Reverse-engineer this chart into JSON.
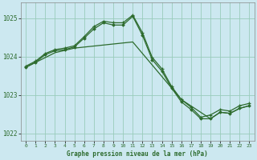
{
  "title": "Graphe pression niveau de la mer (hPa)",
  "bg_color": "#cce8f0",
  "grid_color": "#99ccbb",
  "line_color": "#2d6b2d",
  "xlim": [
    -0.5,
    23.5
  ],
  "ylim": [
    1021.8,
    1025.4
  ],
  "yticks": [
    1022,
    1023,
    1024,
    1025
  ],
  "xtick_labels": [
    "0",
    "1",
    "2",
    "3",
    "4",
    "5",
    "6",
    "7",
    "8",
    "9",
    "10",
    "11",
    "12",
    "13",
    "14",
    "15",
    "16",
    "17",
    "18",
    "19",
    "20",
    "21",
    "22",
    "23"
  ],
  "series_plus": {
    "x": [
      0,
      1,
      2,
      3,
      4,
      5,
      6,
      7,
      8,
      9,
      10,
      11,
      12,
      13,
      14,
      15,
      16,
      17,
      18,
      19,
      20,
      21,
      22,
      23
    ],
    "y": [
      1023.75,
      1023.88,
      1024.08,
      1024.18,
      1024.22,
      1024.28,
      1024.52,
      1024.78,
      1024.92,
      1024.88,
      1024.88,
      1025.08,
      1024.62,
      1023.98,
      1023.68,
      1023.22,
      1022.88,
      1022.68,
      1022.42,
      1022.48,
      1022.62,
      1022.58,
      1022.72,
      1022.78
    ]
  },
  "series_diamond": {
    "x": [
      0,
      1,
      2,
      3,
      4,
      5,
      6,
      7,
      8,
      9,
      10,
      11,
      12,
      13,
      14,
      15,
      16,
      17,
      18,
      19,
      20,
      21,
      22,
      23
    ],
    "y": [
      1023.72,
      1023.85,
      1024.05,
      1024.15,
      1024.18,
      1024.25,
      1024.48,
      1024.72,
      1024.88,
      1024.82,
      1024.82,
      1025.05,
      1024.55,
      1023.92,
      1023.62,
      1023.18,
      1022.82,
      1022.62,
      1022.38,
      1022.38,
      1022.55,
      1022.52,
      1022.65,
      1022.72
    ]
  },
  "series_line": {
    "x": [
      0,
      3,
      5,
      11,
      16,
      19,
      20,
      21,
      22,
      23
    ],
    "y": [
      1023.72,
      1024.1,
      1024.22,
      1024.38,
      1022.88,
      1022.38,
      1022.55,
      1022.52,
      1022.65,
      1022.72
    ]
  }
}
